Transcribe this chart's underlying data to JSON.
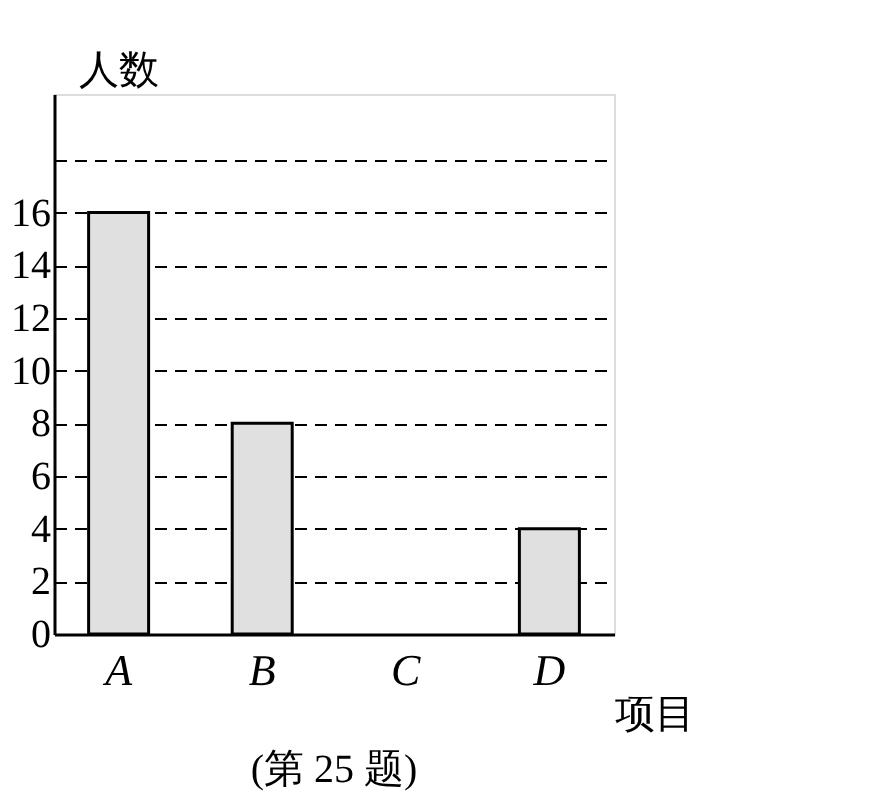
{
  "chart_data": {
    "type": "bar",
    "categories": [
      "A",
      "B",
      "C",
      "D"
    ],
    "values": [
      16,
      8,
      null,
      4
    ],
    "color": "#e0e0e0",
    "xlabel": "项目",
    "ylabel": "人数",
    "ylim": [
      0,
      20.5
    ],
    "yticks": [
      0,
      2,
      4,
      6,
      8,
      10,
      12,
      14,
      16,
      {
        "value": 18,
        "label": null
      }
    ],
    "grid": "y",
    "annotations": [
      "(第 25 题)"
    ]
  }
}
